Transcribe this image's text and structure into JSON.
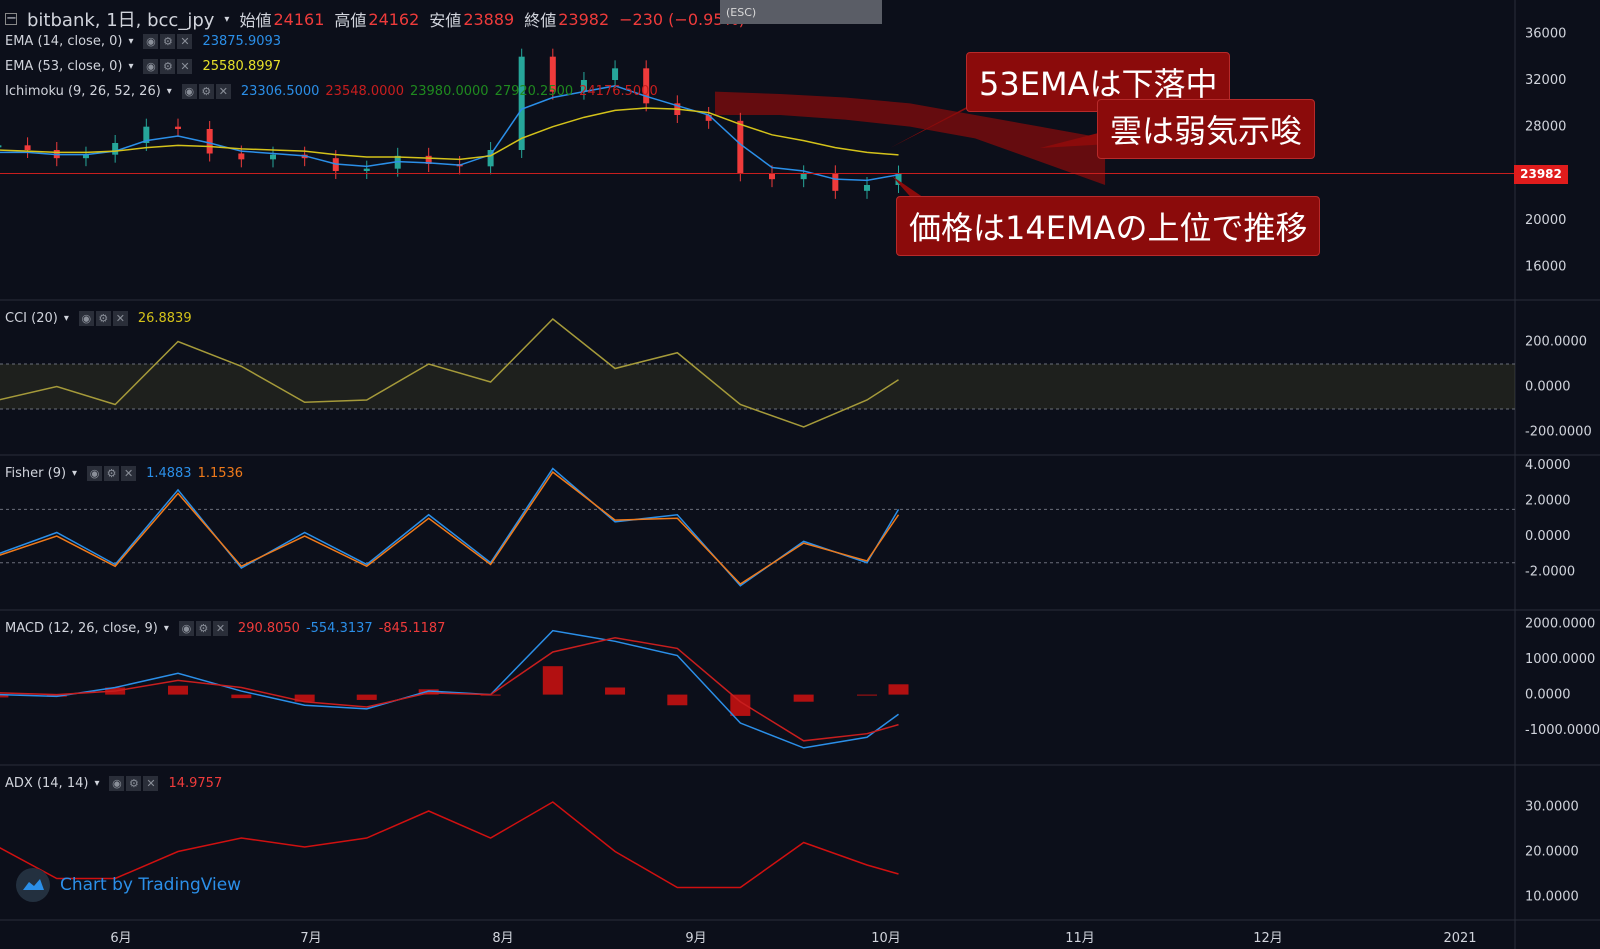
{
  "header": {
    "symbol": "bitbank, 1日, bcc_jpy",
    "open_label": "始値",
    "open": "24161",
    "high_label": "高値",
    "high": "24162",
    "low_label": "安値",
    "low": "23889",
    "close_label": "終値",
    "close": "23982",
    "change": "−230 (−0.95%)"
  },
  "esc_hint": "(ESC)",
  "legends": {
    "ema14": {
      "label": "EMA (14, close, 0)",
      "value": "23875.9093"
    },
    "ema53": {
      "label": "EMA (53, close, 0)",
      "value": "25580.8997"
    },
    "ichimoku": {
      "label": "Ichimoku (9, 26, 52, 26)",
      "values": [
        "23306.5000",
        "23548.0000",
        "23980.0000",
        "27920.2500",
        "24176.5000"
      ]
    },
    "cci": {
      "label": "CCI (20)",
      "value": "26.8839"
    },
    "fisher": {
      "label": "Fisher (9)",
      "value1": "1.4883",
      "value2": "1.1536"
    },
    "macd": {
      "label": "MACD (12, 26, close, 9)",
      "value1": "290.8050",
      "value2": "-554.3137",
      "value3": "-845.1187"
    },
    "adx": {
      "label": "ADX (14, 14)",
      "value": "14.9757"
    }
  },
  "annotations": [
    "53EMAは下落中",
    "雲は弱気示唆",
    "価格は14EMAの上位で推移"
  ],
  "price_tag": "23982",
  "watermark": "Chart by TradingView",
  "colors": {
    "background": "#0c0f1a",
    "up": "#26a69a",
    "down": "#ef3b3b",
    "ema14": "#2b8fe8",
    "ema53": "#d4c21a",
    "cci": "#a59a3a",
    "fisher": "#2b8fe8",
    "fisher_trigger": "#f07a1a",
    "adx": "#d01010",
    "macd_hist": "#d01010",
    "macd_signal": "#c81e1e",
    "macd_line": "#2b8fe8"
  },
  "chart_data": [
    {
      "type": "candlestick",
      "title": "bitbank, 1日, bcc_jpy",
      "x_ticks": [
        "6月",
        "7月",
        "8月",
        "9月",
        "10月",
        "11月",
        "12月",
        "2021"
      ],
      "y_ticks": [
        "16000",
        "20000",
        "24000",
        "28000",
        "32000",
        "36000"
      ],
      "ylim": [
        14000,
        38000
      ],
      "x": [
        "05-11",
        "05-16",
        "05-21",
        "05-26",
        "05-31",
        "06-05",
        "06-10",
        "06-15",
        "06-20",
        "06-25",
        "06-30",
        "07-05",
        "07-10",
        "07-15",
        "07-20",
        "07-25",
        "07-30",
        "08-04",
        "08-09",
        "08-14",
        "08-19",
        "08-24",
        "08-29",
        "09-03",
        "09-08",
        "09-13",
        "09-18",
        "09-23",
        "09-28",
        "10-03"
      ],
      "close": [
        26400,
        26000,
        25300,
        25600,
        26600,
        28000,
        27800,
        25700,
        25200,
        25600,
        25300,
        24200,
        24400,
        25500,
        24800,
        24600,
        26000,
        34000,
        31000,
        32000,
        33000,
        30000,
        29000,
        28500,
        24000,
        23500,
        24000,
        22500,
        23000,
        23982
      ],
      "series": [
        {
          "name": "EMA (14, close, 0)",
          "values": [
            25800,
            25800,
            25600,
            25600,
            25900,
            26800,
            27200,
            26600,
            25900,
            25700,
            25500,
            24800,
            24600,
            25000,
            24900,
            24700,
            25600,
            29500,
            30500,
            31000,
            31500,
            30600,
            29800,
            29000,
            26500,
            24500,
            24200,
            23500,
            23400,
            23876
          ]
        },
        {
          "name": "EMA (53, close, 0)",
          "values": [
            26000,
            25900,
            25800,
            25800,
            25900,
            26200,
            26400,
            26300,
            26100,
            26000,
            25900,
            25600,
            25400,
            25400,
            25300,
            25200,
            25500,
            27000,
            28000,
            28800,
            29400,
            29600,
            29500,
            29200,
            28200,
            27300,
            26800,
            26200,
            25800,
            25581
          ]
        }
      ],
      "cloud": {
        "from": "09-04",
        "to": "11-05",
        "top": [
          31000,
          30800,
          30500,
          30000,
          29000,
          28000,
          27000
        ],
        "bottom": [
          29000,
          29000,
          28600,
          28000,
          27000,
          25000,
          23000
        ]
      }
    },
    {
      "type": "line",
      "title": "CCI (20)",
      "y_ticks": [
        "200.0000",
        "0.0000",
        "-200.0000"
      ],
      "ylim": [
        -260,
        340
      ],
      "x": [
        "05-11",
        "05-21",
        "05-31",
        "06-10",
        "06-20",
        "06-30",
        "07-10",
        "07-20",
        "07-30",
        "08-09",
        "08-19",
        "08-29",
        "09-08",
        "09-18",
        "09-28",
        "10-03"
      ],
      "values": [
        -60,
        0,
        -80,
        200,
        90,
        -70,
        -60,
        100,
        20,
        300,
        80,
        150,
        -80,
        -180,
        -60,
        30
      ]
    },
    {
      "type": "line",
      "title": "Fisher (9)",
      "y_ticks": [
        "4.0000",
        "2.0000",
        "0.0000",
        "-2.0000"
      ],
      "ylim": [
        -3.6,
        4.0
      ],
      "x": [
        "05-11",
        "05-21",
        "05-31",
        "06-10",
        "06-20",
        "06-30",
        "07-10",
        "07-20",
        "07-30",
        "08-09",
        "08-19",
        "08-29",
        "09-08",
        "09-18",
        "09-28",
        "10-03"
      ],
      "series": [
        {
          "name": "Fisher",
          "values": [
            -1.0,
            0.2,
            -1.6,
            2.6,
            -1.8,
            0.2,
            -1.6,
            1.2,
            -1.5,
            3.8,
            0.8,
            1.2,
            -2.8,
            -0.3,
            -1.5,
            1.5
          ]
        },
        {
          "name": "Trigger",
          "values": [
            -1.1,
            0.0,
            -1.7,
            2.4,
            -1.7,
            0.0,
            -1.7,
            1.0,
            -1.6,
            3.6,
            0.9,
            1.0,
            -2.7,
            -0.4,
            -1.4,
            1.2
          ]
        }
      ]
    },
    {
      "type": "bar",
      "title": "MACD (12, 26, close, 9)",
      "y_ticks": [
        "2000.0000",
        "1000.0000",
        "0.0000",
        "-1000.0000"
      ],
      "ylim": [
        -1700,
        2100
      ],
      "x": [
        "05-11",
        "05-21",
        "05-31",
        "06-10",
        "06-20",
        "06-30",
        "07-10",
        "07-20",
        "07-30",
        "08-09",
        "08-19",
        "08-29",
        "09-08",
        "09-18",
        "09-28",
        "10-03"
      ],
      "histogram": [
        -80,
        -60,
        200,
        250,
        -100,
        -200,
        -150,
        150,
        0,
        800,
        200,
        -300,
        -600,
        -200,
        0,
        290
      ],
      "series": [
        {
          "name": "MACD",
          "values": [
            0,
            -50,
            200,
            600,
            100,
            -300,
            -400,
            100,
            0,
            1800,
            1500,
            1100,
            -800,
            -1500,
            -1200,
            -554
          ]
        },
        {
          "name": "Signal",
          "values": [
            50,
            0,
            100,
            400,
            200,
            -200,
            -350,
            50,
            0,
            1200,
            1600,
            1300,
            -200,
            -1300,
            -1100,
            -845
          ]
        }
      ]
    },
    {
      "type": "line",
      "title": "ADX (14, 14)",
      "y_ticks": [
        "30.0000",
        "20.0000",
        "10.0000"
      ],
      "ylim": [
        7,
        37
      ],
      "x": [
        "05-11",
        "05-21",
        "05-31",
        "06-10",
        "06-20",
        "06-30",
        "07-10",
        "07-20",
        "07-30",
        "08-09",
        "08-19",
        "08-29",
        "09-08",
        "09-18",
        "09-28",
        "10-03"
      ],
      "values": [
        21,
        14,
        14,
        20,
        23,
        21,
        23,
        29,
        23,
        31,
        20,
        12,
        12,
        22,
        17,
        15
      ]
    }
  ]
}
